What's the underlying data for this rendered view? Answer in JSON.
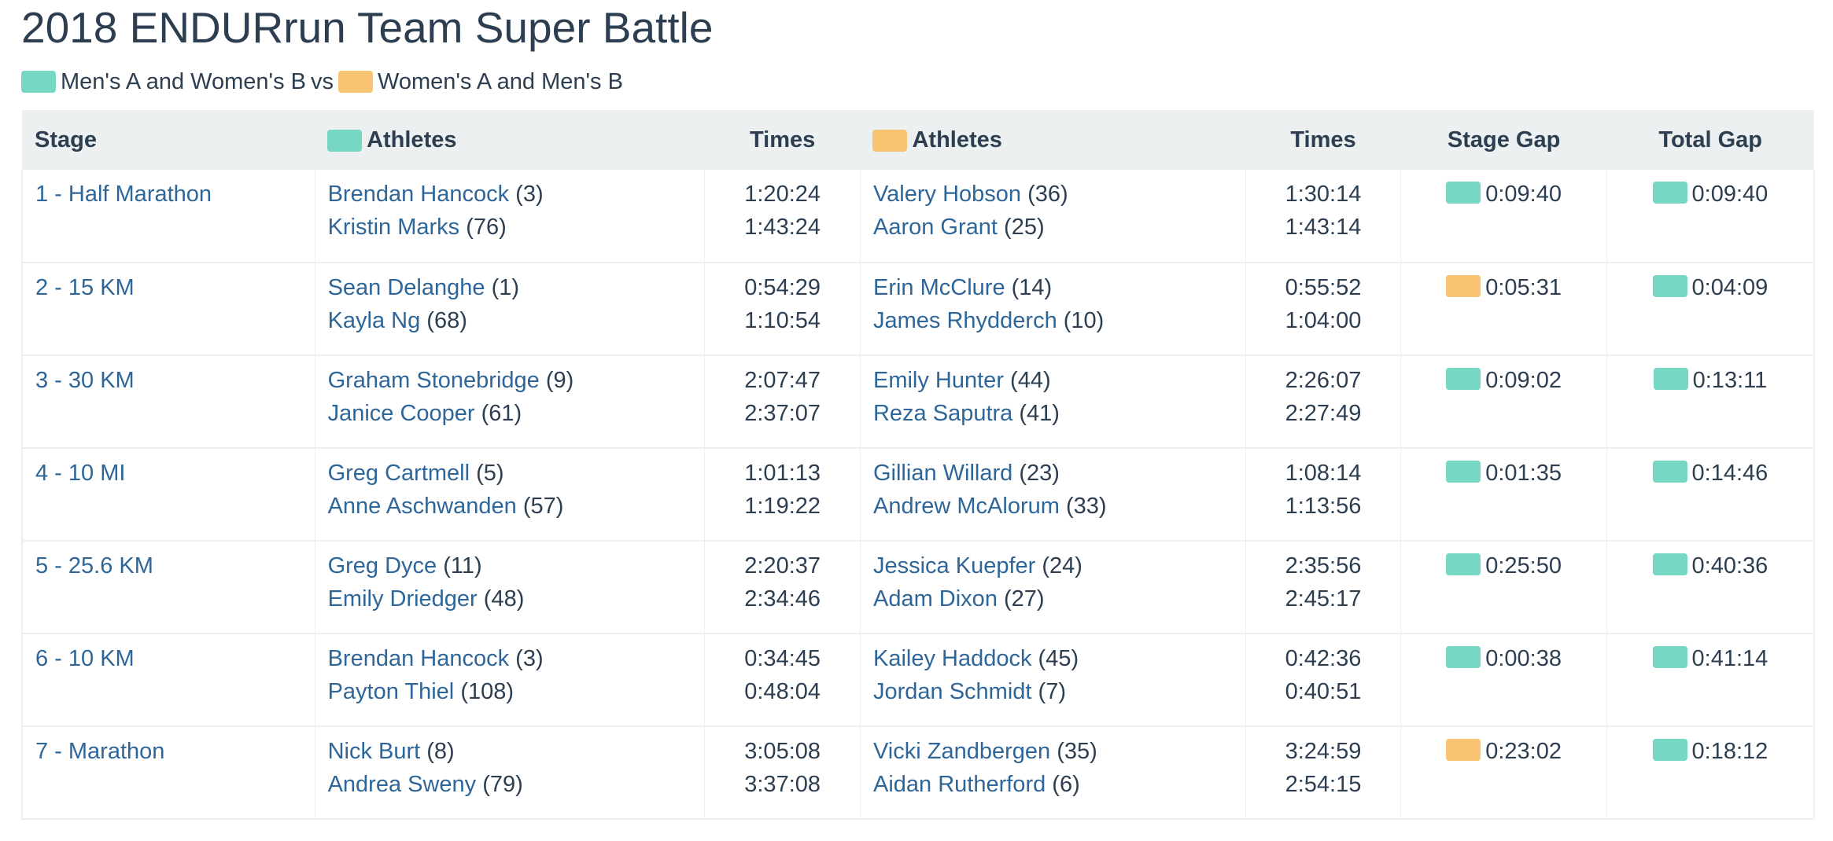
{
  "title": "2018 ENDURrun Team Super Battle",
  "legend": {
    "team_a_label": "Men's A and Women's B",
    "vs": "vs",
    "team_b_label": "Women's A and Men's B"
  },
  "colors": {
    "team_a": "#76d7c4",
    "team_b": "#f8c471",
    "link": "#2e6699",
    "header_bg": "#ecf0f1"
  },
  "table": {
    "headers": {
      "stage": "Stage",
      "athletes_a": "Athletes",
      "times_a": "Times",
      "athletes_b": "Athletes",
      "times_b": "Times",
      "stage_gap": "Stage Gap",
      "total_gap": "Total Gap"
    },
    "rows": [
      {
        "stage": "1 - Half Marathon",
        "team_a": [
          {
            "name": "Brendan Hancock",
            "rank": "(3)",
            "time": "1:20:24"
          },
          {
            "name": "Kristin Marks",
            "rank": "(76)",
            "time": "1:43:24"
          }
        ],
        "team_b": [
          {
            "name": "Valery Hobson",
            "rank": "(36)",
            "time": "1:30:14"
          },
          {
            "name": "Aaron Grant",
            "rank": "(25)",
            "time": "1:43:14"
          }
        ],
        "stage_gap": {
          "leader": "team_a",
          "value": "0:09:40"
        },
        "total_gap": {
          "leader": "team_a",
          "value": "0:09:40"
        }
      },
      {
        "stage": "2 - 15 KM",
        "team_a": [
          {
            "name": "Sean Delanghe",
            "rank": "(1)",
            "time": "0:54:29"
          },
          {
            "name": "Kayla Ng",
            "rank": "(68)",
            "time": "1:10:54"
          }
        ],
        "team_b": [
          {
            "name": "Erin McClure",
            "rank": "(14)",
            "time": "0:55:52"
          },
          {
            "name": "James Rhydderch",
            "rank": "(10)",
            "time": "1:04:00"
          }
        ],
        "stage_gap": {
          "leader": "team_b",
          "value": "0:05:31"
        },
        "total_gap": {
          "leader": "team_a",
          "value": "0:04:09"
        }
      },
      {
        "stage": "3 - 30 KM",
        "team_a": [
          {
            "name": "Graham Stonebridge",
            "rank": "(9)",
            "time": "2:07:47"
          },
          {
            "name": "Janice Cooper",
            "rank": "(61)",
            "time": "2:37:07"
          }
        ],
        "team_b": [
          {
            "name": "Emily Hunter",
            "rank": "(44)",
            "time": "2:26:07"
          },
          {
            "name": "Reza Saputra",
            "rank": "(41)",
            "time": "2:27:49"
          }
        ],
        "stage_gap": {
          "leader": "team_a",
          "value": "0:09:02"
        },
        "total_gap": {
          "leader": "team_a",
          "value": "0:13:11"
        }
      },
      {
        "stage": "4 - 10 MI",
        "team_a": [
          {
            "name": "Greg Cartmell",
            "rank": "(5)",
            "time": "1:01:13"
          },
          {
            "name": "Anne Aschwanden",
            "rank": "(57)",
            "time": "1:19:22"
          }
        ],
        "team_b": [
          {
            "name": "Gillian Willard",
            "rank": "(23)",
            "time": "1:08:14"
          },
          {
            "name": "Andrew McAlorum",
            "rank": "(33)",
            "time": "1:13:56"
          }
        ],
        "stage_gap": {
          "leader": "team_a",
          "value": "0:01:35"
        },
        "total_gap": {
          "leader": "team_a",
          "value": "0:14:46"
        }
      },
      {
        "stage": "5 - 25.6 KM",
        "team_a": [
          {
            "name": "Greg Dyce",
            "rank": "(11)",
            "time": "2:20:37"
          },
          {
            "name": "Emily Driedger",
            "rank": "(48)",
            "time": "2:34:46"
          }
        ],
        "team_b": [
          {
            "name": "Jessica Kuepfer",
            "rank": "(24)",
            "time": "2:35:56"
          },
          {
            "name": "Adam Dixon",
            "rank": "(27)",
            "time": "2:45:17"
          }
        ],
        "stage_gap": {
          "leader": "team_a",
          "value": "0:25:50"
        },
        "total_gap": {
          "leader": "team_a",
          "value": "0:40:36"
        }
      },
      {
        "stage": "6 - 10 KM",
        "team_a": [
          {
            "name": "Brendan Hancock",
            "rank": "(3)",
            "time": "0:34:45"
          },
          {
            "name": "Payton Thiel",
            "rank": "(108)",
            "time": "0:48:04"
          }
        ],
        "team_b": [
          {
            "name": "Kailey Haddock",
            "rank": "(45)",
            "time": "0:42:36"
          },
          {
            "name": "Jordan Schmidt",
            "rank": "(7)",
            "time": "0:40:51"
          }
        ],
        "stage_gap": {
          "leader": "team_a",
          "value": "0:00:38"
        },
        "total_gap": {
          "leader": "team_a",
          "value": "0:41:14"
        }
      },
      {
        "stage": "7 - Marathon",
        "team_a": [
          {
            "name": "Nick Burt",
            "rank": "(8)",
            "time": "3:05:08"
          },
          {
            "name": "Andrea Sweny",
            "rank": "(79)",
            "time": "3:37:08"
          }
        ],
        "team_b": [
          {
            "name": "Vicki Zandbergen",
            "rank": "(35)",
            "time": "3:24:59"
          },
          {
            "name": "Aidan Rutherford",
            "rank": "(6)",
            "time": "2:54:15"
          }
        ],
        "stage_gap": {
          "leader": "team_b",
          "value": "0:23:02"
        },
        "total_gap": {
          "leader": "team_a",
          "value": "0:18:12"
        }
      }
    ]
  }
}
